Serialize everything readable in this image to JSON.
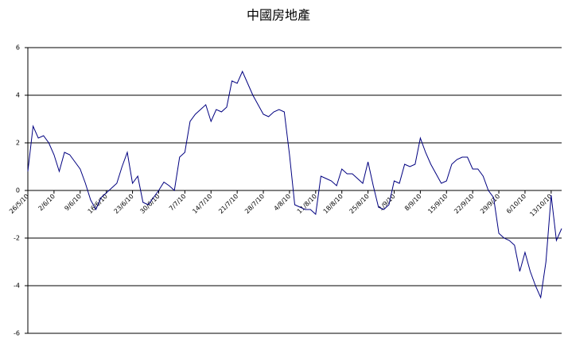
{
  "chart_data": {
    "type": "line",
    "title": "中國房地產",
    "categories": [
      "26/5/10",
      null,
      null,
      null,
      null,
      "2/6/10",
      null,
      null,
      null,
      null,
      "9/6/10",
      null,
      null,
      null,
      null,
      "16/6/10",
      null,
      null,
      null,
      null,
      "23/6/10",
      null,
      null,
      null,
      null,
      "30/6/10",
      null,
      null,
      null,
      null,
      "7/7/10",
      null,
      null,
      null,
      null,
      "14/7/10",
      null,
      null,
      null,
      null,
      "21/7/10",
      null,
      null,
      null,
      null,
      "28/7/10",
      null,
      null,
      null,
      null,
      "4/8/10",
      null,
      null,
      null,
      null,
      "11/8/10",
      null,
      null,
      null,
      null,
      "18/8/10",
      null,
      null,
      null,
      null,
      "25/8/10",
      null,
      null,
      null,
      null,
      "1/9/10",
      null,
      null,
      null,
      null,
      "8/9/10",
      null,
      null,
      null,
      null,
      "15/9/10",
      null,
      null,
      null,
      null,
      "22/9/10",
      null,
      null,
      null,
      null,
      "29/9/10",
      null,
      null,
      null,
      null,
      "6/10/10",
      null,
      null,
      null,
      null,
      "13/10/10",
      null,
      null
    ],
    "values": [
      0.8,
      2.7,
      2.2,
      2.3,
      2.0,
      1.5,
      0.8,
      1.6,
      1.5,
      1.2,
      0.9,
      0.3,
      -0.4,
      -0.8,
      -0.3,
      -0.1,
      0.1,
      0.3,
      1.0,
      1.6,
      0.3,
      0.6,
      -0.5,
      -0.6,
      -0.3,
      0,
      0.35,
      0.2,
      0,
      1.4,
      1.6,
      2.9,
      3.2,
      3.4,
      3.6,
      2.9,
      3.4,
      3.3,
      3.5,
      4.6,
      4.5,
      5.0,
      4.5,
      4.0,
      3.6,
      3.2,
      3.1,
      3.3,
      3.4,
      3.3,
      1.5,
      -0.6,
      -0.7,
      -0.8,
      -0.8,
      -1.0,
      0.6,
      0.5,
      0.4,
      0.2,
      0.9,
      0.7,
      0.7,
      0.5,
      0.3,
      1.2,
      0.2,
      -0.7,
      -0.8,
      -0.6,
      0.4,
      0.3,
      1.1,
      1.0,
      1.1,
      2.2,
      1.6,
      1.1,
      0.7,
      0.3,
      0.4,
      1.1,
      1.3,
      1.4,
      1.4,
      0.9,
      0.9,
      0.6,
      0,
      -0.3,
      -1.8,
      -2.0,
      -2.1,
      -2.3,
      -3.4,
      -2.6,
      -3.4,
      -4.0,
      -4.5,
      -3.0,
      -0.2,
      -2.1,
      -1.6
    ],
    "color": "#000080",
    "ylim": [
      -6,
      6
    ],
    "yticks": [
      -6,
      -4,
      -2,
      0,
      2,
      4,
      6
    ],
    "grid": true
  }
}
